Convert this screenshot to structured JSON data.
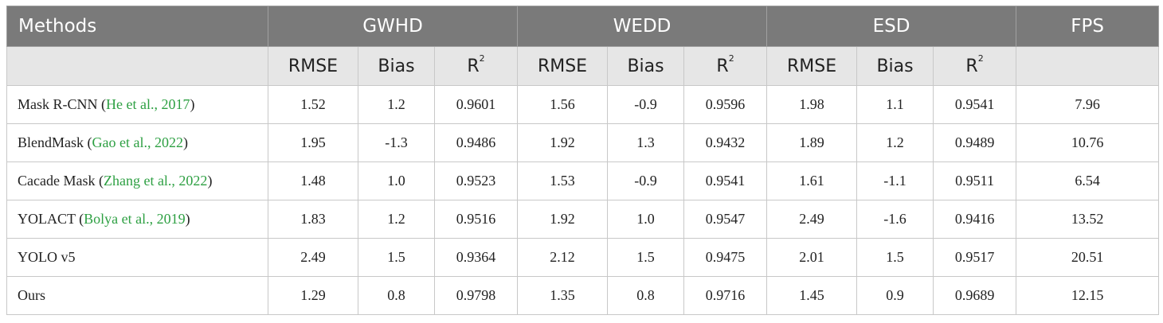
{
  "table": {
    "header_row1": {
      "methods": "Methods",
      "groups": [
        "GWHD",
        "WEDD",
        "ESD"
      ],
      "fps": "FPS"
    },
    "metric_headers": {
      "rmse": "RMSE",
      "bias": "Bias",
      "r_base": "R",
      "r_sup": "2"
    },
    "rows": [
      {
        "method": "Mask R-CNN",
        "cite_open": " (",
        "cite": "He et al., 2017",
        "cite_close": ")",
        "values": [
          "1.52",
          "1.2",
          "0.9601",
          "1.56",
          "-0.9",
          "0.9596",
          "1.98",
          "1.1",
          "0.9541"
        ],
        "fps": "7.96"
      },
      {
        "method": "BlendMask",
        "cite_open": " (",
        "cite": "Gao et al., 2022",
        "cite_close": ")",
        "values": [
          "1.95",
          "-1.3",
          "0.9486",
          "1.92",
          "1.3",
          "0.9432",
          "1.89",
          "1.2",
          "0.9489"
        ],
        "fps": "10.76"
      },
      {
        "method": "Cacade Mask",
        "cite_open": " (",
        "cite": "Zhang et al., 2022",
        "cite_close": ")",
        "values": [
          "1.48",
          "1.0",
          "0.9523",
          "1.53",
          "-0.9",
          "0.9541",
          "1.61",
          "-1.1",
          "0.9511"
        ],
        "fps": "6.54"
      },
      {
        "method": "YOLACT",
        "cite_open": " (",
        "cite": "Bolya et al., 2019",
        "cite_close": ")",
        "values": [
          "1.83",
          "1.2",
          "0.9516",
          "1.92",
          "1.0",
          "0.9547",
          "2.49",
          "-1.6",
          "0.9416"
        ],
        "fps": "13.52"
      },
      {
        "method": "YOLO v5",
        "cite_open": "",
        "cite": "",
        "cite_close": "",
        "values": [
          "2.49",
          "1.5",
          "0.9364",
          "2.12",
          "1.5",
          "0.9475",
          "2.01",
          "1.5",
          "0.9517"
        ],
        "fps": "20.51"
      },
      {
        "method": "Ours",
        "cite_open": "",
        "cite": "",
        "cite_close": "",
        "values": [
          "1.29",
          "0.8",
          "0.9798",
          "1.35",
          "0.8",
          "0.9716",
          "1.45",
          "0.9",
          "0.9689"
        ],
        "fps": "12.15"
      }
    ],
    "colors": {
      "header_bg": "#7a7a7a",
      "subheader_bg": "#e6e6e6",
      "citation": "#2ea043"
    }
  }
}
